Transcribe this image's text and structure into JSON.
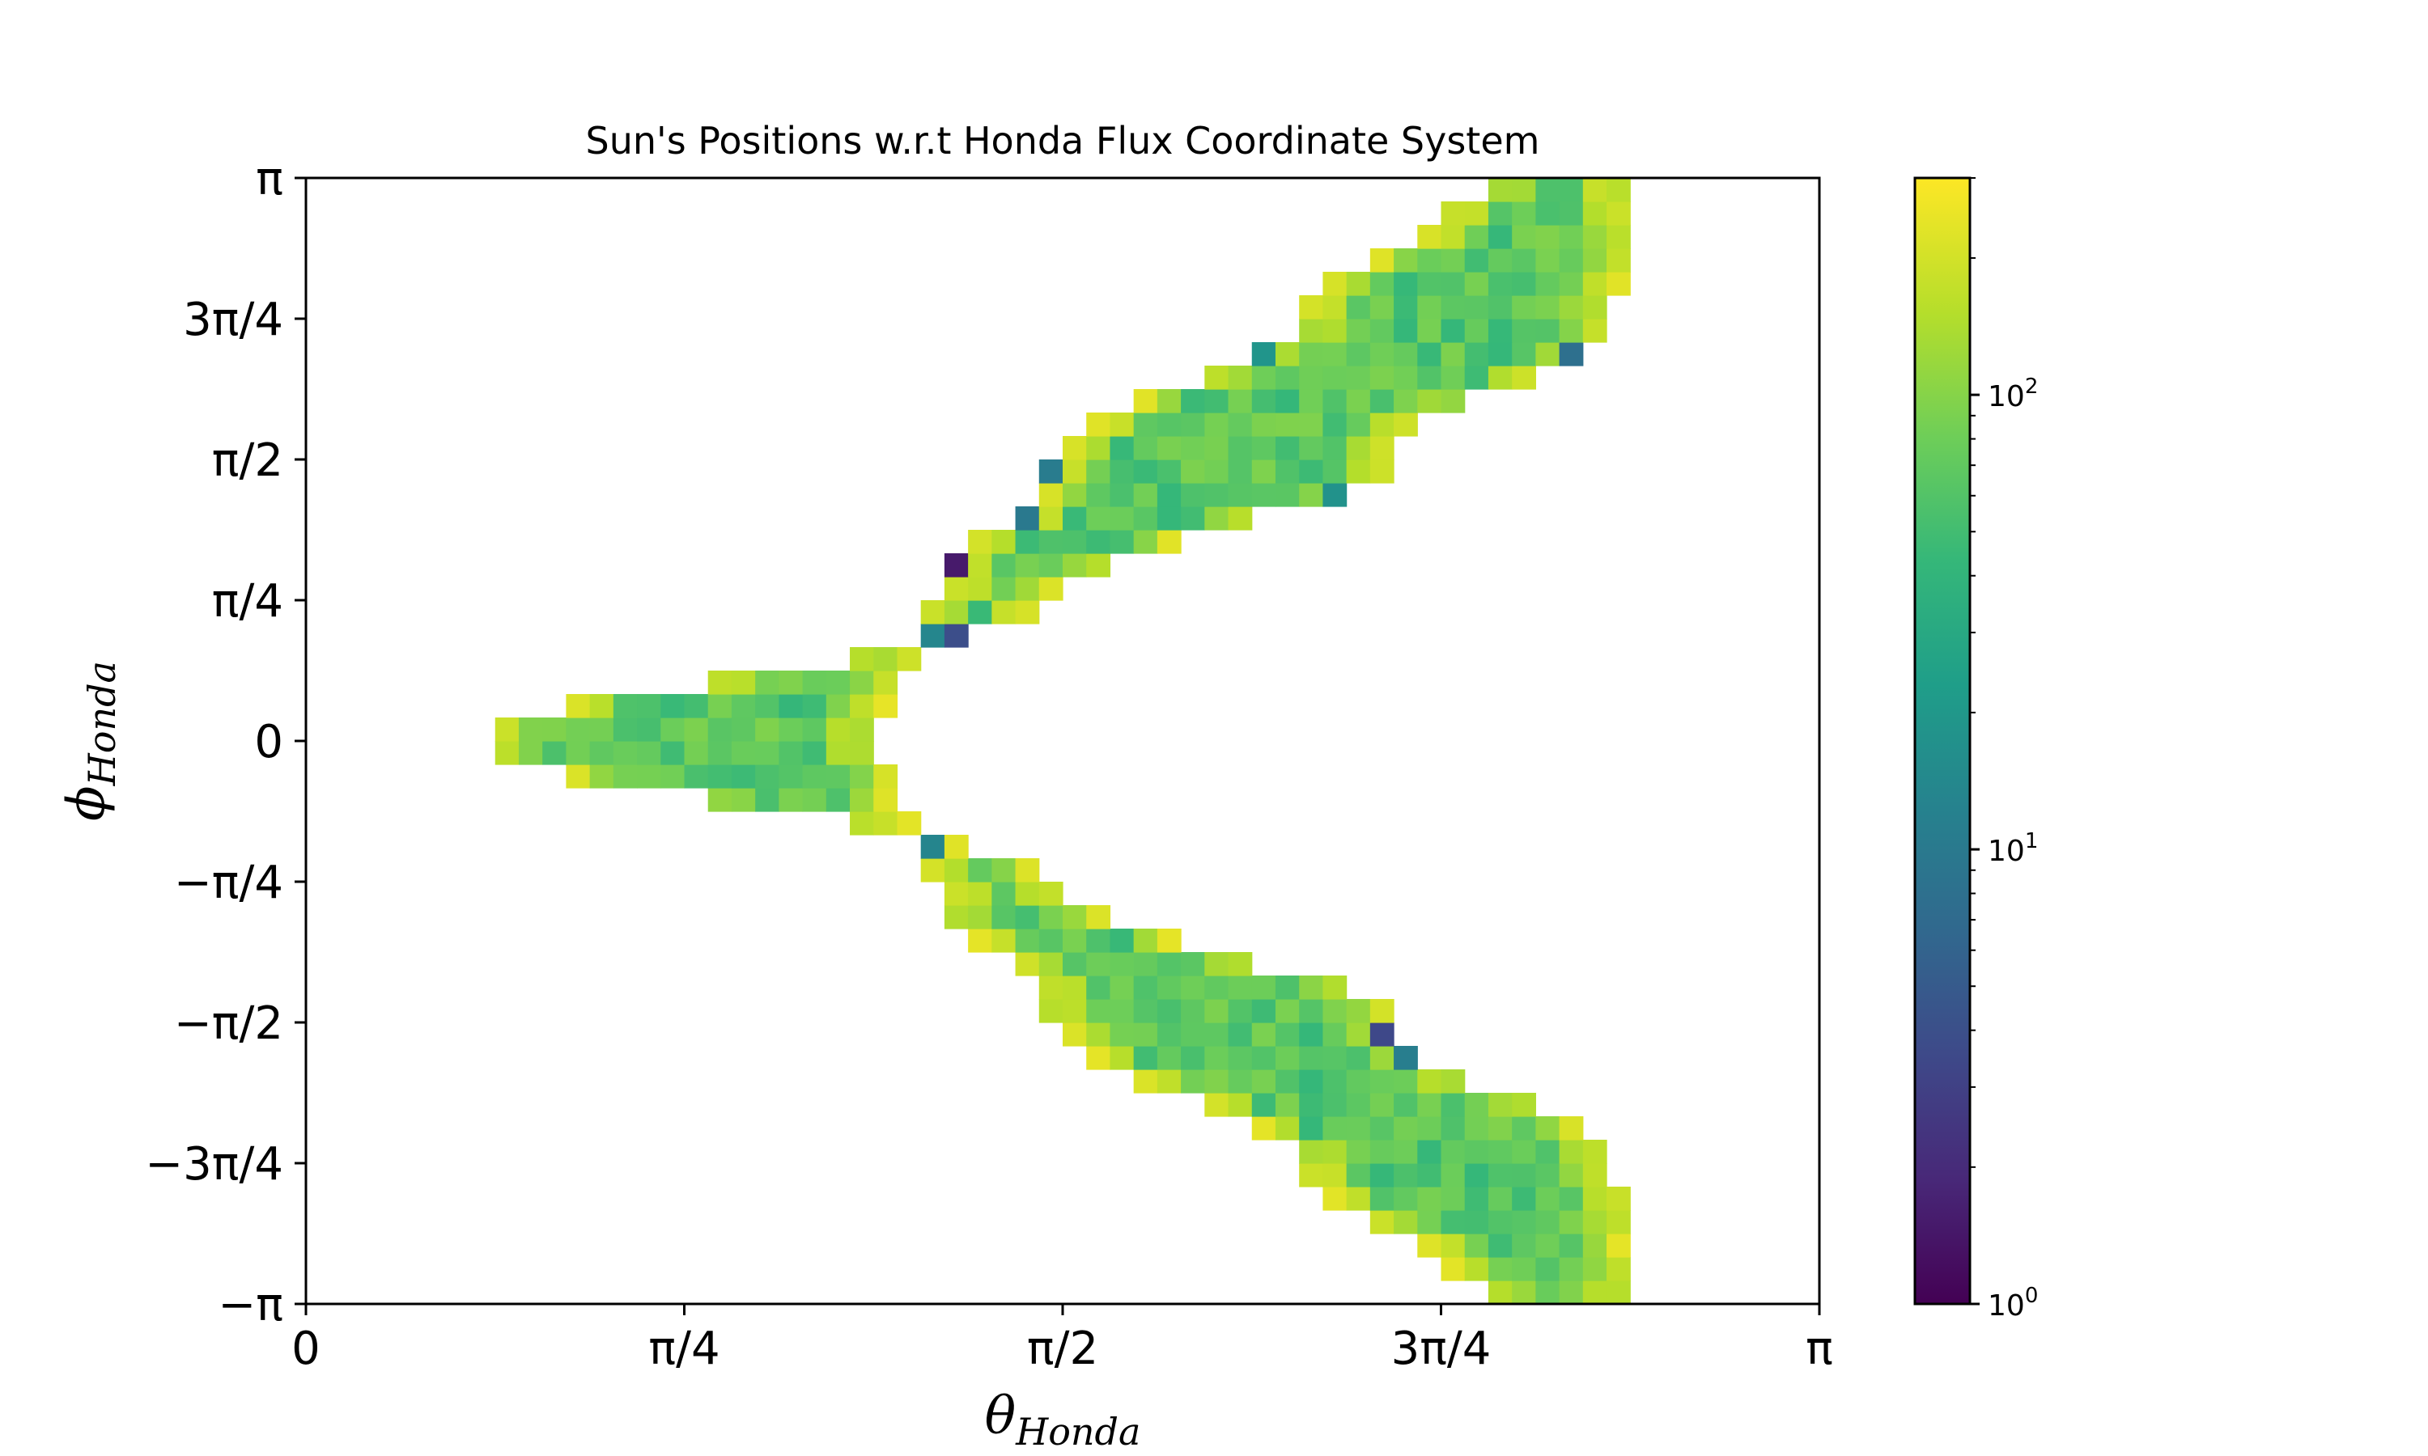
{
  "chart_data": {
    "type": "heatmap",
    "title": "Sun's Positions w.r.t Honda Flux Coordinate System",
    "xlabel": {
      "base": "θ",
      "sub": "Honda"
    },
    "ylabel": {
      "base": "ϕ",
      "sub": "Honda"
    },
    "xlim": [
      0,
      3.14159265
    ],
    "ylim": [
      -3.14159265,
      3.14159265
    ],
    "x_ticks": [
      {
        "value": 0,
        "label": "0"
      },
      {
        "value": 0.78539816,
        "label": "π/4"
      },
      {
        "value": 1.57079633,
        "label": "π/2"
      },
      {
        "value": 2.35619449,
        "label": "3π/4"
      },
      {
        "value": 3.14159265,
        "label": "π"
      }
    ],
    "y_ticks": [
      {
        "value": 3.14159265,
        "label": "π"
      },
      {
        "value": 2.35619449,
        "label": "3π/4"
      },
      {
        "value": 1.57079633,
        "label": "π/2"
      },
      {
        "value": 0.78539816,
        "label": "π/4"
      },
      {
        "value": 0,
        "label": "0"
      },
      {
        "value": -0.78539816,
        "label": "−π/4"
      },
      {
        "value": -1.57079633,
        "label": "−π/2"
      },
      {
        "value": -2.35619449,
        "label": "−3π/4"
      },
      {
        "value": -3.14159265,
        "label": "−π"
      }
    ],
    "bins": {
      "nx": 64,
      "ny": 48
    },
    "band": {
      "description_of_shape": "counts occupy theta between inner and outer edge at each phi",
      "phi": [
        -3.14159,
        -2.35619,
        -1.5708,
        -0.7854,
        0.0,
        0.7854,
        1.5708,
        2.35619,
        3.14159
      ],
      "inner": [
        2.44,
        2.05,
        1.55,
        1.3,
        1.2,
        1.3,
        1.55,
        2.05,
        2.44
      ],
      "outer": [
        2.77,
        2.72,
        2.25,
        1.55,
        0.37,
        1.55,
        2.25,
        2.72,
        2.77
      ]
    },
    "typical_count": 80,
    "edge_count": 250,
    "sparse_count_range": [
      1,
      20
    ],
    "colorbar": {
      "scale": "log",
      "colormap": "viridis",
      "min": 1,
      "max": 300,
      "ticks": [
        {
          "value": 1,
          "base": "10",
          "exp": "0"
        },
        {
          "value": 10,
          "base": "10",
          "exp": "1"
        },
        {
          "value": 100,
          "base": "10",
          "exp": "2"
        }
      ]
    },
    "colors": {
      "viridis_stops": [
        "#440154",
        "#482878",
        "#3e4989",
        "#31688e",
        "#26828e",
        "#1f9e89",
        "#35b779",
        "#6ece58",
        "#b5de2b",
        "#fde725"
      ]
    }
  }
}
